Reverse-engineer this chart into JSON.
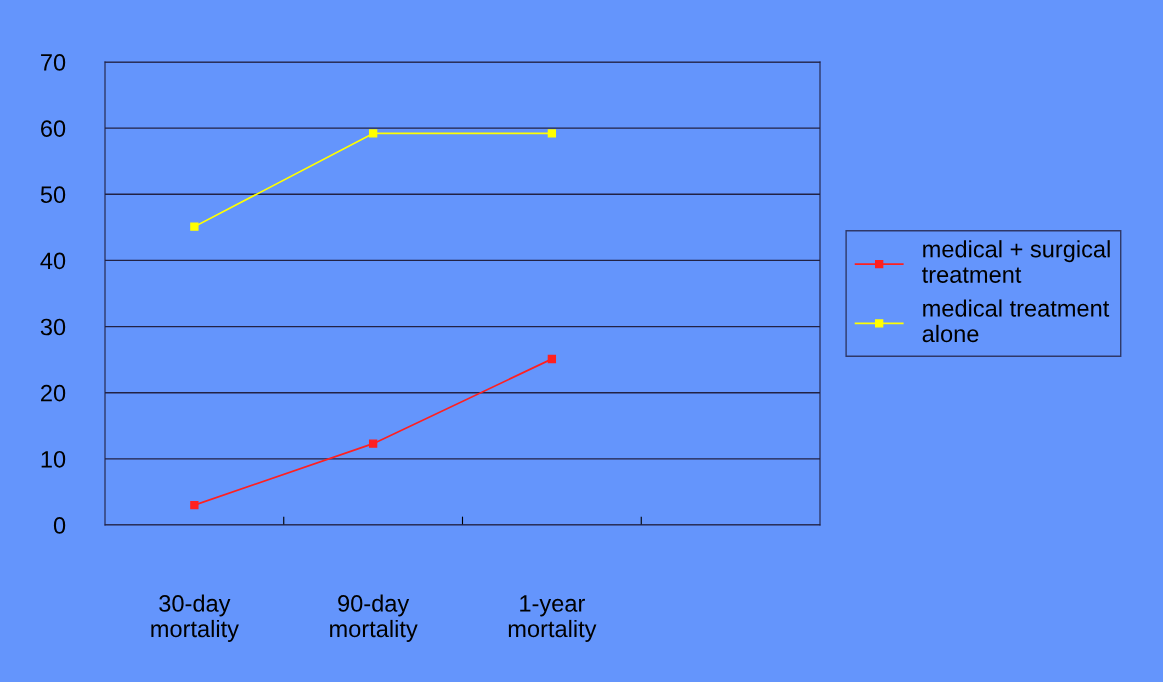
{
  "chart_data": {
    "type": "line",
    "categories": [
      "30-day\nmortality",
      "90-day\nmortality",
      "1-year\nmortality",
      null
    ],
    "series": [
      {
        "name": "medical + surgical\ntreatment",
        "color": "#ff2020",
        "values": [
          3,
          12.3,
          25.1,
          null
        ]
      },
      {
        "name": "medical treatment\nalone",
        "color": "#ffff00",
        "values": [
          45.1,
          59.2,
          59.2,
          null
        ]
      }
    ],
    "ylim": [
      0,
      70
    ],
    "yticks": [
      0,
      10,
      20,
      30,
      40,
      50,
      60,
      70
    ],
    "grid": "y",
    "legend": "right",
    "marker": "square",
    "line_style": "solid"
  }
}
